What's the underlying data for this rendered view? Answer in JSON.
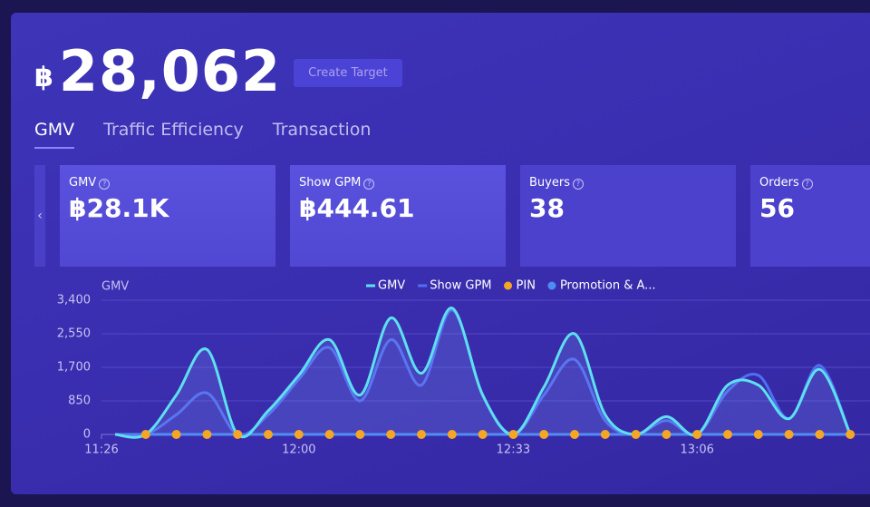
{
  "header": {
    "currency": "฿",
    "amount": "28,062",
    "button": "Create Target"
  },
  "tabs": [
    "GMV",
    "Traffic Efficiency",
    "Transaction"
  ],
  "cards": [
    {
      "label": "GMV",
      "value": "฿28.1K"
    },
    {
      "label": "Show GPM",
      "value": "฿444.61"
    },
    {
      "label": "Buyers",
      "value": "38"
    },
    {
      "label": "Orders",
      "value": "56"
    }
  ],
  "chart_data": {
    "type": "line",
    "y_label": "GMV",
    "categories": [
      "11:26",
      null,
      null,
      null,
      null,
      null,
      "12:00",
      null,
      null,
      null,
      null,
      null,
      null,
      "12:33",
      null,
      null,
      null,
      null,
      null,
      "13:06",
      null,
      null,
      null,
      null,
      null
    ],
    "series": [
      {
        "name": "GMV",
        "color": "#5ee0f0",
        "values": [
          0,
          0,
          1000,
          2150,
          0,
          600,
          1500,
          2400,
          1000,
          2950,
          1550,
          3200,
          1000,
          0,
          1200,
          2550,
          500,
          0,
          450,
          0,
          1250,
          1250,
          400,
          1650,
          0
        ]
      },
      {
        "name": "Show GPM",
        "color": "#4f6ff0",
        "values": [
          0,
          0,
          500,
          1050,
          0,
          500,
          1400,
          2200,
          850,
          2400,
          1250,
          3150,
          1000,
          0,
          1000,
          1900,
          350,
          0,
          350,
          0,
          1100,
          1500,
          400,
          1750,
          0
        ]
      },
      {
        "name": "PIN",
        "color": "#f5a623",
        "values": [
          null,
          0,
          0,
          0,
          0,
          0,
          0,
          0,
          0,
          0,
          0,
          0,
          0,
          0,
          0,
          0,
          0,
          0,
          0,
          0,
          0,
          0,
          0,
          0,
          0
        ]
      },
      {
        "name": "Promotion & A...",
        "color": "#4d8cf5",
        "values": [
          0,
          0,
          0,
          0,
          0,
          0,
          0,
          0,
          0,
          0,
          0,
          0,
          0,
          0,
          0,
          0,
          0,
          0,
          0,
          0,
          0,
          0,
          0,
          0,
          0
        ]
      }
    ],
    "ylim": [
      0,
      3400
    ],
    "yticks": [
      0,
      850,
      {
        "value": 1700,
        "label": "1,700"
      },
      {
        "value": 2550,
        "label": "2,550"
      },
      {
        "value": 3400,
        "label": "3,400"
      }
    ],
    "grid": true
  }
}
